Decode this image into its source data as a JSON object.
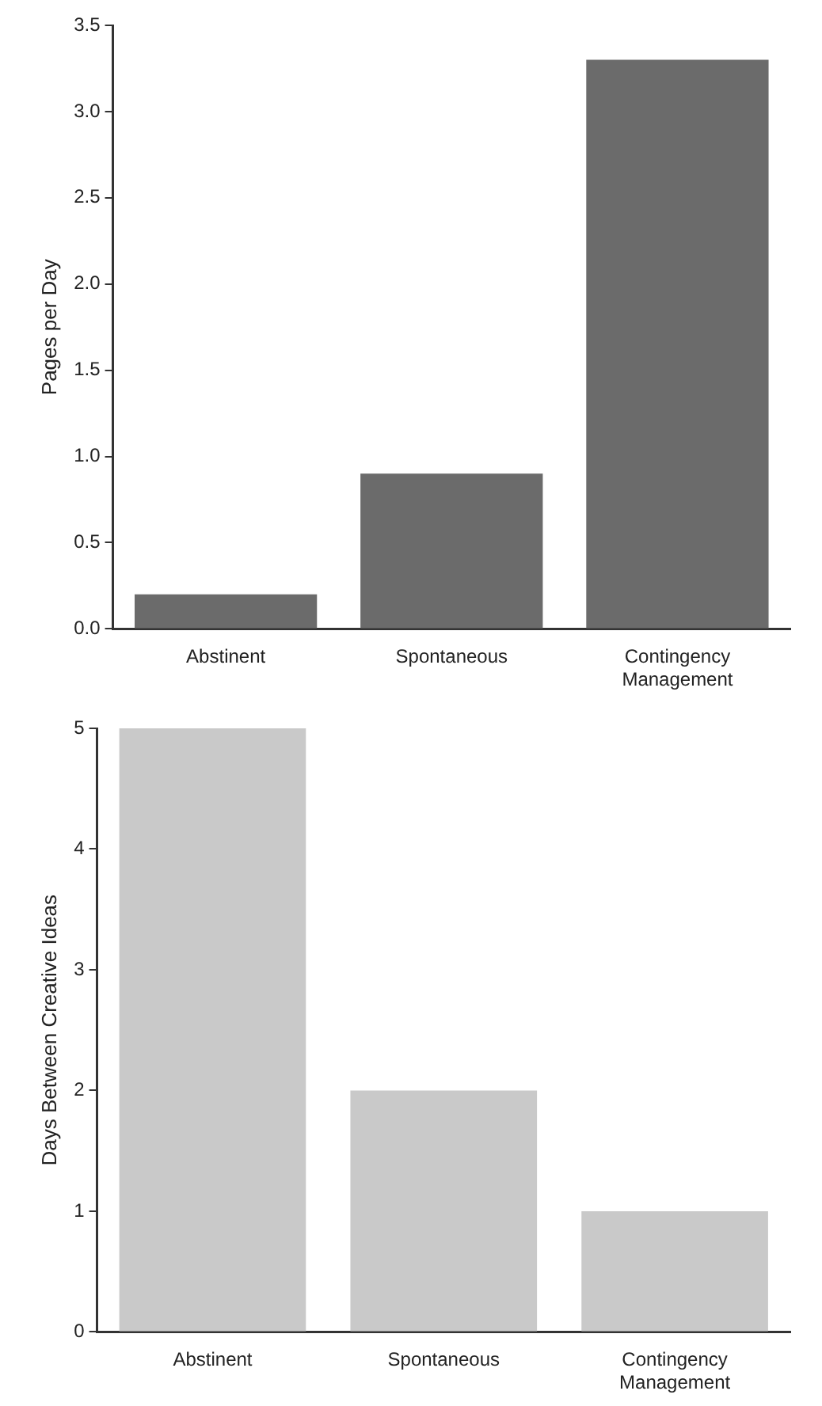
{
  "chart_data": [
    {
      "type": "bar",
      "ylabel": "Pages per Day",
      "categories": [
        "Abstinent",
        "Spontaneous",
        "Contingency Management"
      ],
      "values": [
        0.2,
        0.9,
        3.3
      ],
      "color": "#6b6b6b",
      "ylim": [
        0,
        3.5
      ],
      "yticks": [
        {
          "value": 0,
          "label": "0.0"
        },
        {
          "value": 0.5,
          "label": "0.5"
        },
        {
          "value": 1,
          "label": "1.0"
        },
        {
          "value": 1.5,
          "label": "1.5"
        },
        {
          "value": 2,
          "label": "2.0"
        },
        {
          "value": 2.5,
          "label": "2.5"
        },
        {
          "value": 3,
          "label": "3.0"
        },
        {
          "value": 3.5,
          "label": "3.5"
        }
      ],
      "grid": false,
      "legend": false
    },
    {
      "type": "bar",
      "ylabel": "Days Between Creative Ideas",
      "categories": [
        "Abstinent",
        "Spontaneous",
        "Contingency Management"
      ],
      "values": [
        5,
        2,
        1
      ],
      "color": "#c9c9c9",
      "ylim": [
        0,
        5
      ],
      "yticks": [
        0,
        1,
        2,
        3,
        4,
        5
      ],
      "grid": false,
      "legend": false
    }
  ]
}
